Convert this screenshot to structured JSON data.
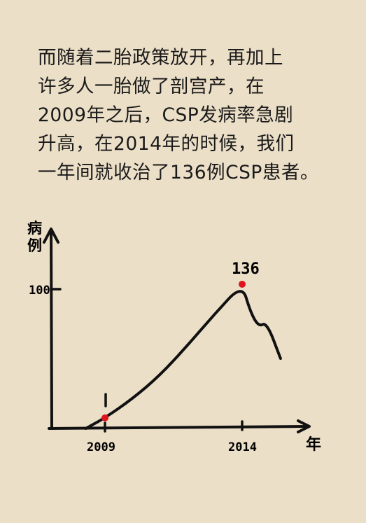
{
  "paragraph": [
    "而随着二胎政策放开，再加上",
    "许多人一胎做了剖宫产，在",
    "2009年之后，CSP发病率急剧",
    "升高，在2014年的时候，我们",
    "一年间就收治了136例CSP患者。"
  ],
  "chart_data": {
    "type": "line",
    "ylabel": "病例",
    "xlabel": "年",
    "x_ticks": [
      "2009",
      "2014"
    ],
    "y_ticks": [
      "100"
    ],
    "points": [
      {
        "x": 2008.3,
        "y": 0
      },
      {
        "x": 2009,
        "y": 10
      },
      {
        "x": 2010,
        "y": 28
      },
      {
        "x": 2011,
        "y": 50
      },
      {
        "x": 2012,
        "y": 78
      },
      {
        "x": 2013,
        "y": 108
      },
      {
        "x": 2014,
        "y": 136
      },
      {
        "x": 2014.3,
        "y": 110
      },
      {
        "x": 2014.6,
        "y": 96
      },
      {
        "x": 2014.9,
        "y": 100
      },
      {
        "x": 2015.4,
        "y": 66
      }
    ],
    "highlight": [
      {
        "x": 2009,
        "y": 10,
        "label": "",
        "color": "#e0141e"
      },
      {
        "x": 2014,
        "y": 136,
        "label": "136",
        "color": "#e0141e"
      }
    ]
  }
}
